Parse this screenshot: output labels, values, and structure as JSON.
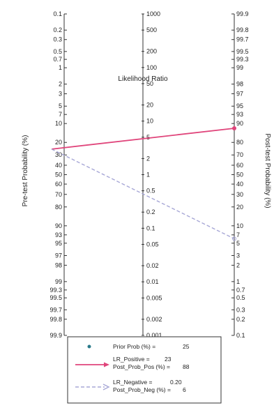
{
  "chart_data": {
    "type": "line",
    "title": "",
    "left_axis": {
      "label": "Pre-test Probability (%)",
      "ticks": [
        "0.1",
        "0.2",
        "0.3",
        "0.5",
        "0.7",
        "1",
        "2",
        "3",
        "5",
        "7",
        "10",
        "20",
        "30",
        "40",
        "50",
        "60",
        "70",
        "80",
        "90",
        "93",
        "95",
        "97",
        "98",
        "99",
        "99.3",
        "99.5",
        "99.7",
        "99.8",
        "99.9"
      ]
    },
    "right_axis": {
      "label": "Post-test Probability (%)",
      "ticks": [
        "99.9",
        "99.8",
        "99.7",
        "99.5",
        "99.3",
        "99",
        "98",
        "97",
        "95",
        "93",
        "90",
        "80",
        "70",
        "60",
        "50",
        "40",
        "30",
        "20",
        "10",
        "7",
        "5",
        "3",
        "2",
        "1",
        "0.7",
        "0.5",
        "0.3",
        "0.2",
        "0.1"
      ]
    },
    "center_axis": {
      "label": "Likelihood Ratio",
      "ticks": [
        "1000",
        "500",
        "200",
        "100",
        "50",
        "20",
        "10",
        "5",
        "2",
        "1",
        "0.5",
        "0.2",
        "0.1",
        "0.05",
        "0.02",
        "0.01",
        "0.005",
        "0.002",
        "0.001"
      ]
    },
    "prior_prob": 25,
    "lr_positive": 23,
    "post_prob_pos": 88,
    "lr_negative": 0.2,
    "post_prob_neg": 6,
    "series": [
      {
        "name": "LR_Positive",
        "color": "#e0457b",
        "style": "solid"
      },
      {
        "name": "LR_Negative",
        "color": "#a7a7d6",
        "style": "dashed"
      }
    ],
    "legend": {
      "prior_label": "Prior Prob (%) =",
      "prior_value": "25",
      "pos_line1": "LR_Positive =",
      "pos_lr_value": "23",
      "pos_line2": "Post_Prob_Pos (%) =",
      "pos_post_value": "88",
      "neg_line1": "LR_Negative =",
      "neg_lr_value": "0.20",
      "neg_line2": "Post_Prob_Neg (%) =",
      "neg_post_value": "6",
      "placement": "bottom"
    }
  }
}
